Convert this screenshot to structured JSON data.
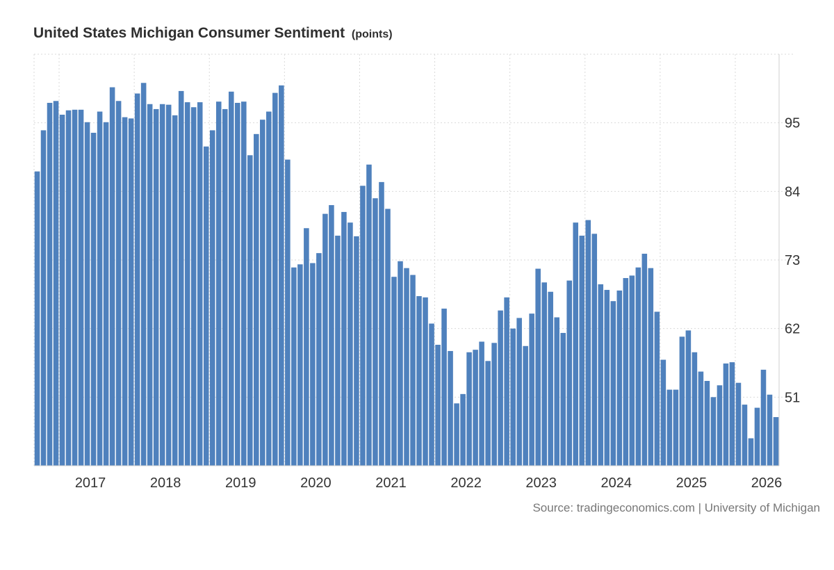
{
  "title": "United States Michigan Consumer Sentiment",
  "unit": "(points)",
  "source": "Source: tradingeconomics.com | University of Michigan",
  "colors": {
    "bar": "#4f81bd"
  },
  "chart_data": {
    "type": "bar",
    "title": "United States Michigan Consumer Sentiment",
    "subtitle": "(points)",
    "ylim": [
      40,
      106
    ],
    "y_ticks": [
      51,
      62,
      73,
      84,
      95
    ],
    "x_tick_labels": [
      "2017",
      "2018",
      "2019",
      "2020",
      "2021",
      "2022",
      "2023",
      "2024",
      "2025",
      "2026"
    ],
    "grid": true,
    "start": "2016-09",
    "values": [
      87.2,
      93.8,
      98.2,
      98.5,
      96.3,
      97.0,
      97.1,
      97.1,
      95.1,
      93.4,
      96.8,
      95.1,
      100.7,
      98.5,
      95.9,
      95.7,
      99.7,
      101.4,
      98.0,
      97.2,
      98.0,
      97.9,
      96.2,
      100.1,
      98.3,
      97.5,
      98.3,
      91.2,
      93.8,
      98.4,
      97.2,
      100.0,
      98.2,
      98.4,
      89.8,
      93.2,
      95.5,
      96.8,
      99.8,
      101.0,
      89.1,
      71.8,
      72.3,
      78.1,
      72.5,
      74.1,
      80.4,
      81.8,
      76.9,
      80.7,
      79.0,
      76.8,
      84.9,
      88.3,
      82.9,
      85.5,
      81.2,
      70.3,
      72.8,
      71.7,
      70.6,
      67.2,
      67.0,
      62.8,
      59.4,
      65.2,
      58.4,
      50.0,
      51.5,
      58.2,
      58.6,
      59.9,
      56.8,
      59.7,
      64.9,
      67.0,
      62.0,
      63.7,
      59.2,
      64.4,
      71.6,
      69.4,
      67.9,
      63.8,
      61.3,
      69.7,
      79.0,
      76.9,
      79.4,
      77.2,
      69.1,
      68.2,
      66.4,
      68.1,
      70.1,
      70.5,
      71.8,
      74.0,
      71.7,
      64.7,
      57.0,
      52.2,
      52.2,
      60.7,
      61.7,
      58.2,
      55.1,
      53.6,
      51.0,
      52.9,
      56.4,
      56.6,
      53.3,
      49.8,
      44.4,
      49.3,
      55.4,
      51.4,
      47.8
    ]
  }
}
